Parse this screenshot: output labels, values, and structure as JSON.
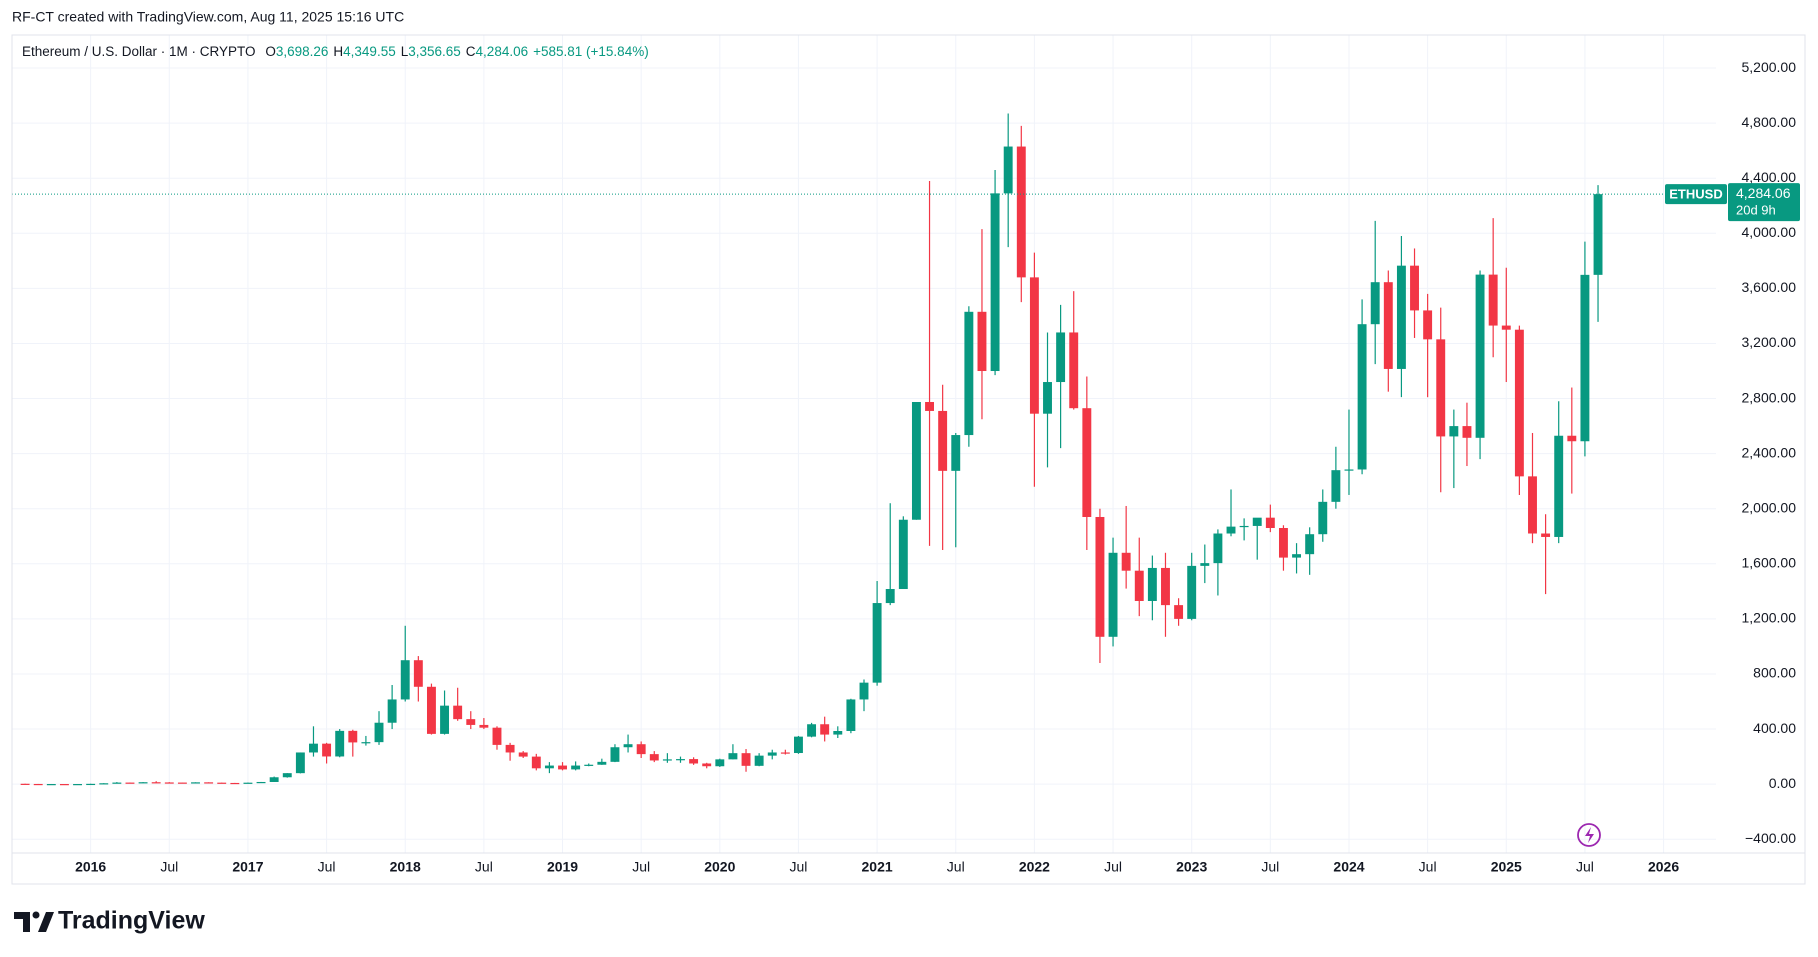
{
  "header": {
    "attribution": "RF-CT created with TradingView.com, Aug 11, 2025 15:16 UTC"
  },
  "chart_data": {
    "type": "candlestick",
    "title": "Ethereum / U.S. Dollar · 1M · CRYPTO",
    "ohlc_legend": [
      {
        "key": "O",
        "label": "3,698.26"
      },
      {
        "key": "H",
        "label": "4,349.55"
      },
      {
        "key": "L",
        "label": "3,356.65"
      },
      {
        "key": "C",
        "label": "4,284.06"
      }
    ],
    "change": "+585.81 (+15.84%)",
    "up_color": "#089981",
    "down_color": "#f23645",
    "candles": [
      [
        "2015-08",
        2.77,
        3,
        0.5,
        1.35
      ],
      [
        "2015-09",
        1.35,
        1.4,
        0.6,
        0.73
      ],
      [
        "2015-10",
        0.73,
        1.2,
        0.42,
        0.93
      ],
      [
        "2015-11",
        0.93,
        1.05,
        0.8,
        0.87
      ],
      [
        "2015-12",
        0.87,
        0.99,
        0.75,
        0.93
      ],
      [
        "2016-01",
        0.93,
        2.8,
        0.9,
        2.2
      ],
      [
        "2016-02",
        2.2,
        7,
        2.1,
        6.4
      ],
      [
        "2016-03",
        6.4,
        15,
        6,
        11.4
      ],
      [
        "2016-04",
        11.4,
        12,
        7,
        8.8
      ],
      [
        "2016-05",
        8.8,
        14.8,
        8.4,
        14
      ],
      [
        "2016-06",
        14,
        21.5,
        11,
        12.4
      ],
      [
        "2016-07",
        12.4,
        14.5,
        10.5,
        11.5
      ],
      [
        "2016-08",
        11.5,
        12,
        10,
        11.4
      ],
      [
        "2016-09",
        11.4,
        13.5,
        11,
        13.2
      ],
      [
        "2016-10",
        13.2,
        13.5,
        10.5,
        10.8
      ],
      [
        "2016-11",
        10.8,
        11.5,
        8.8,
        8.7
      ],
      [
        "2016-12",
        8.7,
        9,
        6.2,
        8
      ],
      [
        "2017-01",
        8,
        11.5,
        7.8,
        10.7
      ],
      [
        "2017-02",
        10.7,
        16,
        10.5,
        15.7
      ],
      [
        "2017-03",
        15.7,
        55,
        15.5,
        50
      ],
      [
        "2017-04",
        50,
        80,
        47,
        79.8
      ],
      [
        "2017-05",
        79.8,
        230,
        78,
        230
      ],
      [
        "2017-06",
        230,
        420,
        200,
        294
      ],
      [
        "2017-07",
        294,
        300,
        150,
        201
      ],
      [
        "2017-08",
        201,
        400,
        195,
        387
      ],
      [
        "2017-09",
        387,
        395,
        200,
        303
      ],
      [
        "2017-10",
        303,
        350,
        280,
        305
      ],
      [
        "2017-11",
        305,
        530,
        285,
        446
      ],
      [
        "2017-12",
        446,
        720,
        400,
        615
      ],
      [
        "2018-01",
        615,
        1150,
        600,
        900
      ],
      [
        "2018-02",
        900,
        930,
        600,
        707
      ],
      [
        "2018-03",
        707,
        730,
        360,
        365
      ],
      [
        "2018-04",
        365,
        680,
        360,
        570
      ],
      [
        "2018-05",
        570,
        700,
        460,
        472
      ],
      [
        "2018-06",
        472,
        530,
        400,
        430
      ],
      [
        "2018-07",
        430,
        480,
        400,
        410
      ],
      [
        "2018-08",
        410,
        420,
        250,
        285
      ],
      [
        "2018-09",
        285,
        300,
        170,
        230
      ],
      [
        "2018-10",
        230,
        240,
        190,
        200
      ],
      [
        "2018-11",
        200,
        220,
        100,
        115
      ],
      [
        "2018-12",
        115,
        160,
        80,
        135
      ],
      [
        "2019-01",
        135,
        160,
        100,
        107
      ],
      [
        "2019-02",
        107,
        165,
        100,
        135
      ],
      [
        "2019-03",
        135,
        150,
        130,
        141
      ],
      [
        "2019-04",
        141,
        185,
        140,
        162
      ],
      [
        "2019-05",
        162,
        290,
        160,
        268
      ],
      [
        "2019-06",
        268,
        360,
        230,
        290
      ],
      [
        "2019-07",
        290,
        310,
        190,
        218
      ],
      [
        "2019-08",
        218,
        240,
        160,
        172
      ],
      [
        "2019-09",
        172,
        225,
        155,
        180
      ],
      [
        "2019-10",
        180,
        200,
        155,
        182
      ],
      [
        "2019-11",
        182,
        195,
        140,
        150
      ],
      [
        "2019-12",
        150,
        155,
        115,
        130
      ],
      [
        "2020-01",
        130,
        185,
        125,
        180
      ],
      [
        "2020-02",
        180,
        290,
        180,
        225
      ],
      [
        "2020-03",
        225,
        255,
        90,
        133
      ],
      [
        "2020-04",
        133,
        225,
        130,
        207
      ],
      [
        "2020-05",
        207,
        250,
        180,
        230
      ],
      [
        "2020-06",
        230,
        250,
        215,
        226
      ],
      [
        "2020-07",
        226,
        350,
        220,
        345
      ],
      [
        "2020-08",
        345,
        445,
        340,
        435
      ],
      [
        "2020-09",
        435,
        490,
        310,
        360
      ],
      [
        "2020-10",
        360,
        420,
        335,
        386
      ],
      [
        "2020-11",
        386,
        620,
        370,
        615
      ],
      [
        "2020-12",
        615,
        760,
        530,
        737
      ],
      [
        "2021-01",
        737,
        1475,
        715,
        1315
      ],
      [
        "2021-02",
        1315,
        2040,
        1300,
        1417
      ],
      [
        "2021-03",
        1417,
        1945,
        1430,
        1920
      ],
      [
        "2021-04",
        1920,
        2770,
        1920,
        2775
      ],
      [
        "2021-05",
        2775,
        4380,
        1730,
        2710
      ],
      [
        "2021-06",
        2710,
        2900,
        1700,
        2275
      ],
      [
        "2021-07",
        2275,
        2550,
        1720,
        2535
      ],
      [
        "2021-08",
        2535,
        3470,
        2450,
        3430
      ],
      [
        "2021-09",
        3430,
        4030,
        2650,
        3000
      ],
      [
        "2021-10",
        3000,
        4460,
        2970,
        4290
      ],
      [
        "2021-11",
        4290,
        4870,
        3900,
        4630
      ],
      [
        "2021-12",
        4630,
        4780,
        3500,
        3680
      ],
      [
        "2022-01",
        3680,
        3860,
        2160,
        2690
      ],
      [
        "2022-02",
        2690,
        3280,
        2300,
        2920
      ],
      [
        "2022-03",
        2920,
        3480,
        2440,
        3280
      ],
      [
        "2022-04",
        3280,
        3580,
        2720,
        2730
      ],
      [
        "2022-05",
        2730,
        2960,
        1700,
        1940
      ],
      [
        "2022-06",
        1940,
        2000,
        880,
        1070
      ],
      [
        "2022-07",
        1070,
        1790,
        1000,
        1680
      ],
      [
        "2022-08",
        1680,
        2020,
        1420,
        1550
      ],
      [
        "2022-09",
        1550,
        1790,
        1220,
        1330
      ],
      [
        "2022-10",
        1330,
        1660,
        1190,
        1570
      ],
      [
        "2022-11",
        1570,
        1680,
        1070,
        1300
      ],
      [
        "2022-12",
        1300,
        1350,
        1150,
        1200
      ],
      [
        "2023-01",
        1200,
        1680,
        1190,
        1585
      ],
      [
        "2023-02",
        1585,
        1740,
        1460,
        1605
      ],
      [
        "2023-03",
        1605,
        1850,
        1370,
        1820
      ],
      [
        "2023-04",
        1820,
        2140,
        1800,
        1870
      ],
      [
        "2023-05",
        1870,
        1930,
        1770,
        1875
      ],
      [
        "2023-06",
        1875,
        1930,
        1630,
        1935
      ],
      [
        "2023-07",
        1935,
        2030,
        1830,
        1860
      ],
      [
        "2023-08",
        1860,
        1880,
        1550,
        1645
      ],
      [
        "2023-09",
        1645,
        1750,
        1530,
        1670
      ],
      [
        "2023-10",
        1670,
        1865,
        1520,
        1815
      ],
      [
        "2023-11",
        1815,
        2140,
        1760,
        2050
      ],
      [
        "2023-12",
        2050,
        2450,
        2000,
        2280
      ],
      [
        "2024-01",
        2280,
        2720,
        2100,
        2285
      ],
      [
        "2024-02",
        2285,
        3520,
        2250,
        3340
      ],
      [
        "2024-03",
        3340,
        4090,
        3050,
        3645
      ],
      [
        "2024-04",
        3645,
        3730,
        2850,
        3015
      ],
      [
        "2024-05",
        3015,
        3980,
        2810,
        3765
      ],
      [
        "2024-06",
        3765,
        3890,
        3240,
        3440
      ],
      [
        "2024-07",
        3440,
        3560,
        2810,
        3230
      ],
      [
        "2024-08",
        3230,
        3460,
        2120,
        2525
      ],
      [
        "2024-09",
        2525,
        2720,
        2150,
        2600
      ],
      [
        "2024-10",
        2600,
        2770,
        2310,
        2515
      ],
      [
        "2024-11",
        2515,
        3730,
        2360,
        3700
      ],
      [
        "2024-12",
        3700,
        4110,
        3100,
        3330
      ],
      [
        "2025-01",
        3330,
        3750,
        2920,
        3300
      ],
      [
        "2025-02",
        3300,
        3330,
        2100,
        2235
      ],
      [
        "2025-03",
        2235,
        2550,
        1750,
        1820
      ],
      [
        "2025-04",
        1820,
        1960,
        1380,
        1795
      ],
      [
        "2025-05",
        1795,
        2780,
        1750,
        2530
      ],
      [
        "2025-06",
        2530,
        2880,
        2110,
        2490
      ],
      [
        "2025-07",
        2490,
        3940,
        2380,
        3698.26
      ],
      [
        "2025-08",
        3698.26,
        4349.55,
        3356.65,
        4284.06
      ]
    ],
    "xlim": [
      "2015-07",
      "2026-05"
    ],
    "xticks": [
      {
        "value": "2016-01",
        "label": "2016"
      },
      {
        "value": "2016-07",
        "label": "Jul"
      },
      {
        "value": "2017-01",
        "label": "2017"
      },
      {
        "value": "2017-07",
        "label": "Jul"
      },
      {
        "value": "2018-01",
        "label": "2018"
      },
      {
        "value": "2018-07",
        "label": "Jul"
      },
      {
        "value": "2019-01",
        "label": "2019"
      },
      {
        "value": "2019-07",
        "label": "Jul"
      },
      {
        "value": "2020-01",
        "label": "2020"
      },
      {
        "value": "2020-07",
        "label": "Jul"
      },
      {
        "value": "2021-01",
        "label": "2021"
      },
      {
        "value": "2021-07",
        "label": "Jul"
      },
      {
        "value": "2022-01",
        "label": "2022"
      },
      {
        "value": "2022-07",
        "label": "Jul"
      },
      {
        "value": "2023-01",
        "label": "2023"
      },
      {
        "value": "2023-07",
        "label": "Jul"
      },
      {
        "value": "2024-01",
        "label": "2024"
      },
      {
        "value": "2024-07",
        "label": "Jul"
      },
      {
        "value": "2025-01",
        "label": "2025"
      },
      {
        "value": "2025-07",
        "label": "Jul"
      },
      {
        "value": "2026-01",
        "label": "2026"
      }
    ],
    "ylim": [
      -500,
      5440
    ],
    "yticks": [
      {
        "value": -400,
        "label": "−400.00"
      },
      {
        "value": 0,
        "label": "0.00"
      },
      {
        "value": 400,
        "label": "400.00"
      },
      {
        "value": 800,
        "label": "800.00"
      },
      {
        "value": 1200,
        "label": "1,200.00"
      },
      {
        "value": 1600,
        "label": "1,600.00"
      },
      {
        "value": 2000,
        "label": "2,000.00"
      },
      {
        "value": 2400,
        "label": "2,400.00"
      },
      {
        "value": 2800,
        "label": "2,800.00"
      },
      {
        "value": 3200,
        "label": "3,200.00"
      },
      {
        "value": 3600,
        "label": "3,600.00"
      },
      {
        "value": 4000,
        "label": "4,000.00"
      },
      {
        "value": 4400,
        "label": "4,400.00"
      },
      {
        "value": 4800,
        "label": "4,800.00"
      },
      {
        "value": 5200,
        "label": "5,200.00"
      }
    ],
    "grid": true,
    "last_price": {
      "symbol": "ETHUSD",
      "value": 4284.06,
      "label": "4,284.06",
      "countdown": "20d 9h"
    }
  },
  "footer": {
    "brand": "TradingView"
  }
}
